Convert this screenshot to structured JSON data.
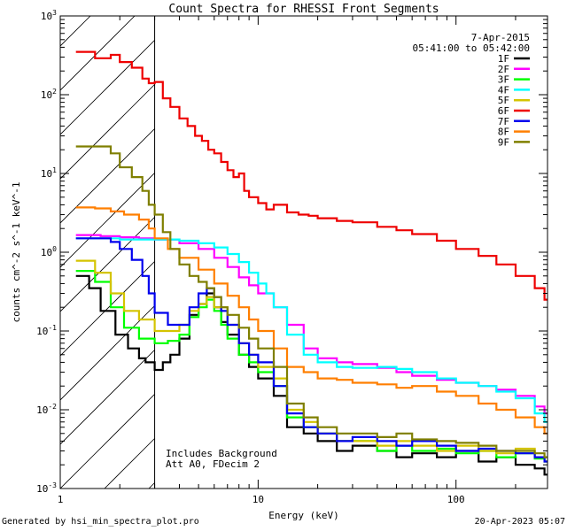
{
  "chart_data": {
    "type": "line",
    "title": "Count Spectra for RHESSI Front Segments",
    "xlabel": "Energy (keV)",
    "ylabel": "counts cm^-2 s^-1 keV^-1",
    "xscale": "log",
    "yscale": "log",
    "xlim": [
      1,
      290
    ],
    "ylim": [
      0.001,
      1000
    ],
    "x_ticks": [
      1,
      10,
      100
    ],
    "y_ticks": [
      0.001,
      0.01,
      0.1,
      1,
      10,
      100,
      1000
    ],
    "date": "7-Apr-2015",
    "time_range": "05:41:00 to 05:42:00",
    "annotation_lines": [
      "Includes Background",
      "Att A0, FDecim 2"
    ],
    "hatched_region_max_keV": 3,
    "series": [
      {
        "name": "1F",
        "color": "#000000",
        "x": [
          1.2,
          1.4,
          1.6,
          1.9,
          2.2,
          2.5,
          2.7,
          3.0,
          3.3,
          3.6,
          4.0,
          4.5,
          5.0,
          5.5,
          6.0,
          6.5,
          7.0,
          8.0,
          9.0,
          10.0,
          12.0,
          14.0,
          17.0,
          20.0,
          25.0,
          30.0,
          40.0,
          50.0,
          60.0,
          80.0,
          100.0,
          130.0,
          160.0,
          200.0,
          250.0,
          280.0
        ],
        "y": [
          0.5,
          0.35,
          0.18,
          0.09,
          0.06,
          0.045,
          0.04,
          0.032,
          0.04,
          0.05,
          0.08,
          0.16,
          0.22,
          0.3,
          0.2,
          0.13,
          0.09,
          0.05,
          0.035,
          0.025,
          0.015,
          0.006,
          0.005,
          0.004,
          0.003,
          0.0035,
          0.003,
          0.0025,
          0.0028,
          0.0025,
          0.003,
          0.0022,
          0.0025,
          0.002,
          0.0018,
          0.0015
        ]
      },
      {
        "name": "2F",
        "color": "#ff00ff",
        "x": [
          1.2,
          1.6,
          2.0,
          2.5,
          3.0,
          4.0,
          5.0,
          6.0,
          7.0,
          8.0,
          9.0,
          10.0,
          12.0,
          14.0,
          17.0,
          20.0,
          25.0,
          30.0,
          40.0,
          50.0,
          60.0,
          80.0,
          100.0,
          130.0,
          160.0,
          200.0,
          250.0,
          280.0
        ],
        "y": [
          1.65,
          1.6,
          1.55,
          1.5,
          1.45,
          1.3,
          1.1,
          0.85,
          0.65,
          0.48,
          0.38,
          0.3,
          0.2,
          0.12,
          0.06,
          0.045,
          0.04,
          0.038,
          0.034,
          0.03,
          0.027,
          0.024,
          0.022,
          0.02,
          0.018,
          0.015,
          0.011,
          0.009
        ]
      },
      {
        "name": "3F",
        "color": "#00ff00",
        "x": [
          1.2,
          1.5,
          1.8,
          2.1,
          2.5,
          3.0,
          3.5,
          4.0,
          4.5,
          5.0,
          5.5,
          6.0,
          6.5,
          7.0,
          8.0,
          9.0,
          10.0,
          12.0,
          14.0,
          17.0,
          20.0,
          25.0,
          30.0,
          40.0,
          50.0,
          60.0,
          80.0,
          100.0,
          130.0,
          160.0,
          200.0,
          250.0,
          280.0
        ],
        "y": [
          0.58,
          0.42,
          0.2,
          0.11,
          0.08,
          0.07,
          0.075,
          0.09,
          0.15,
          0.2,
          0.25,
          0.18,
          0.12,
          0.08,
          0.05,
          0.04,
          0.03,
          0.02,
          0.008,
          0.006,
          0.005,
          0.004,
          0.004,
          0.003,
          0.0035,
          0.003,
          0.0032,
          0.0028,
          0.003,
          0.0025,
          0.0028,
          0.0024,
          0.0022
        ]
      },
      {
        "name": "4F",
        "color": "#00ffff",
        "x": [
          1.2,
          1.6,
          2.0,
          2.5,
          3.0,
          4.0,
          5.0,
          6.0,
          7.0,
          8.0,
          9.0,
          10.0,
          11.0,
          12.0,
          14.0,
          17.0,
          20.0,
          25.0,
          30.0,
          40.0,
          50.0,
          60.0,
          80.0,
          100.0,
          130.0,
          160.0,
          200.0,
          250.0,
          280.0
        ],
        "y": [
          1.5,
          1.5,
          1.45,
          1.45,
          1.45,
          1.4,
          1.3,
          1.15,
          0.95,
          0.75,
          0.55,
          0.4,
          0.3,
          0.2,
          0.09,
          0.05,
          0.04,
          0.035,
          0.034,
          0.035,
          0.033,
          0.03,
          0.025,
          0.022,
          0.02,
          0.017,
          0.014,
          0.009,
          0.007
        ]
      },
      {
        "name": "5F",
        "color": "#d4c400",
        "x": [
          1.2,
          1.5,
          1.8,
          2.1,
          2.5,
          3.0,
          3.5,
          4.0,
          4.5,
          5.0,
          5.5,
          6.0,
          7.0,
          8.0,
          9.0,
          10.0,
          12.0,
          14.0,
          17.0,
          20.0,
          25.0,
          30.0,
          40.0,
          50.0,
          60.0,
          80.0,
          100.0,
          130.0,
          160.0,
          200.0,
          250.0,
          280.0
        ],
        "y": [
          0.78,
          0.55,
          0.3,
          0.18,
          0.14,
          0.1,
          0.1,
          0.12,
          0.18,
          0.22,
          0.27,
          0.2,
          0.12,
          0.07,
          0.05,
          0.035,
          0.025,
          0.01,
          0.007,
          0.005,
          0.004,
          0.004,
          0.0035,
          0.004,
          0.0035,
          0.003,
          0.0035,
          0.003,
          0.0028,
          0.0032,
          0.0025,
          0.0022
        ]
      },
      {
        "name": "6F",
        "color": "#ee0000",
        "x": [
          1.2,
          1.5,
          1.8,
          2.0,
          2.3,
          2.6,
          2.8,
          3.0,
          3.3,
          3.6,
          4.0,
          4.4,
          4.8,
          5.2,
          5.6,
          6.0,
          6.5,
          7.0,
          7.5,
          8.0,
          8.5,
          9.0,
          10.0,
          11.0,
          12.0,
          14.0,
          16.0,
          18.0,
          20.0,
          25.0,
          30.0,
          40.0,
          50.0,
          60.0,
          80.0,
          100.0,
          130.0,
          160.0,
          200.0,
          250.0,
          280.0
        ],
        "y": [
          350,
          290,
          320,
          260,
          220,
          160,
          140,
          145,
          90,
          70,
          50,
          40,
          30,
          26,
          20,
          18,
          14,
          11,
          9,
          10,
          6,
          5,
          4.2,
          3.5,
          4,
          3.2,
          3,
          2.9,
          2.7,
          2.5,
          2.4,
          2.1,
          1.9,
          1.7,
          1.4,
          1.1,
          0.9,
          0.7,
          0.5,
          0.35,
          0.25
        ]
      },
      {
        "name": "7F",
        "color": "#0000ee",
        "x": [
          1.2,
          1.5,
          1.8,
          2.0,
          2.3,
          2.6,
          2.8,
          3.0,
          3.5,
          4.0,
          4.5,
          5.0,
          5.5,
          6.0,
          6.5,
          7.0,
          8.0,
          9.0,
          10.0,
          12.0,
          14.0,
          17.0,
          20.0,
          25.0,
          30.0,
          40.0,
          50.0,
          60.0,
          80.0,
          100.0,
          130.0,
          160.0,
          200.0,
          250.0,
          280.0
        ],
        "y": [
          1.5,
          1.5,
          1.35,
          1.1,
          0.8,
          0.5,
          0.3,
          0.17,
          0.12,
          0.12,
          0.2,
          0.3,
          0.35,
          0.27,
          0.18,
          0.12,
          0.07,
          0.05,
          0.04,
          0.02,
          0.009,
          0.006,
          0.005,
          0.004,
          0.0045,
          0.004,
          0.0035,
          0.004,
          0.0035,
          0.003,
          0.0032,
          0.003,
          0.0028,
          0.0025,
          0.0022
        ]
      },
      {
        "name": "8F",
        "color": "#ff7f00",
        "x": [
          1.2,
          1.5,
          1.8,
          2.1,
          2.5,
          2.8,
          3.0,
          3.5,
          4.0,
          5.0,
          6.0,
          7.0,
          8.0,
          9.0,
          10.0,
          12.0,
          14.0,
          17.0,
          20.0,
          25.0,
          30.0,
          40.0,
          50.0,
          60.0,
          80.0,
          100.0,
          130.0,
          160.0,
          200.0,
          250.0,
          280.0
        ],
        "y": [
          3.7,
          3.6,
          3.3,
          3.0,
          2.6,
          2.0,
          1.5,
          1.1,
          0.85,
          0.6,
          0.4,
          0.28,
          0.2,
          0.14,
          0.1,
          0.06,
          0.035,
          0.03,
          0.025,
          0.024,
          0.022,
          0.021,
          0.019,
          0.02,
          0.017,
          0.015,
          0.012,
          0.01,
          0.008,
          0.006,
          0.005
        ]
      },
      {
        "name": "9F",
        "color": "#7f7f00",
        "x": [
          1.2,
          1.5,
          1.8,
          2.0,
          2.3,
          2.6,
          2.8,
          3.0,
          3.3,
          3.6,
          4.0,
          4.5,
          5.0,
          5.5,
          6.0,
          6.5,
          7.0,
          8.0,
          9.0,
          10.0,
          12.0,
          14.0,
          17.0,
          20.0,
          25.0,
          30.0,
          40.0,
          50.0,
          60.0,
          80.0,
          100.0,
          130.0,
          160.0,
          200.0,
          250.0,
          280.0
        ],
        "y": [
          22,
          22,
          18,
          12,
          9,
          6,
          4,
          3,
          1.8,
          1.1,
          0.7,
          0.5,
          0.42,
          0.35,
          0.27,
          0.2,
          0.16,
          0.11,
          0.08,
          0.06,
          0.035,
          0.012,
          0.008,
          0.006,
          0.005,
          0.005,
          0.0045,
          0.005,
          0.0042,
          0.004,
          0.0038,
          0.0035,
          0.003,
          0.003,
          0.0028,
          0.0025
        ]
      }
    ]
  },
  "footer": {
    "left": "Generated by hsi_min_spectra_plot.pro",
    "right": "20-Apr-2023 05:07"
  }
}
